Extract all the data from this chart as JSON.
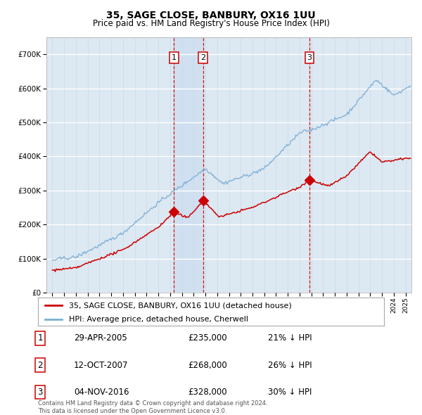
{
  "title": "35, SAGE CLOSE, BANBURY, OX16 1UU",
  "subtitle": "Price paid vs. HM Land Registry's House Price Index (HPI)",
  "footer1": "Contains HM Land Registry data © Crown copyright and database right 2024.",
  "footer2": "This data is licensed under the Open Government Licence v3.0.",
  "legend_red": "35, SAGE CLOSE, BANBURY, OX16 1UU (detached house)",
  "legend_blue": "HPI: Average price, detached house, Cherwell",
  "transactions": [
    {
      "num": 1,
      "date": "29-APR-2005",
      "price": 235000,
      "pct": "21%",
      "x_year": 2005.33
    },
    {
      "num": 2,
      "date": "12-OCT-2007",
      "price": 268000,
      "pct": "26%",
      "x_year": 2007.79
    },
    {
      "num": 3,
      "date": "04-NOV-2016",
      "price": 328000,
      "pct": "30%",
      "x_year": 2016.84
    }
  ],
  "hpi_color": "#7aadd4",
  "price_color": "#cc0000",
  "vline_color": "#cc0000",
  "shade_color": "#d8e8f5",
  "background_color": "#dce8f2",
  "ylim": [
    0,
    750000
  ],
  "yticks": [
    0,
    100000,
    200000,
    300000,
    400000,
    500000,
    600000,
    700000
  ],
  "xlim_start": 1994.5,
  "xlim_end": 2025.5
}
